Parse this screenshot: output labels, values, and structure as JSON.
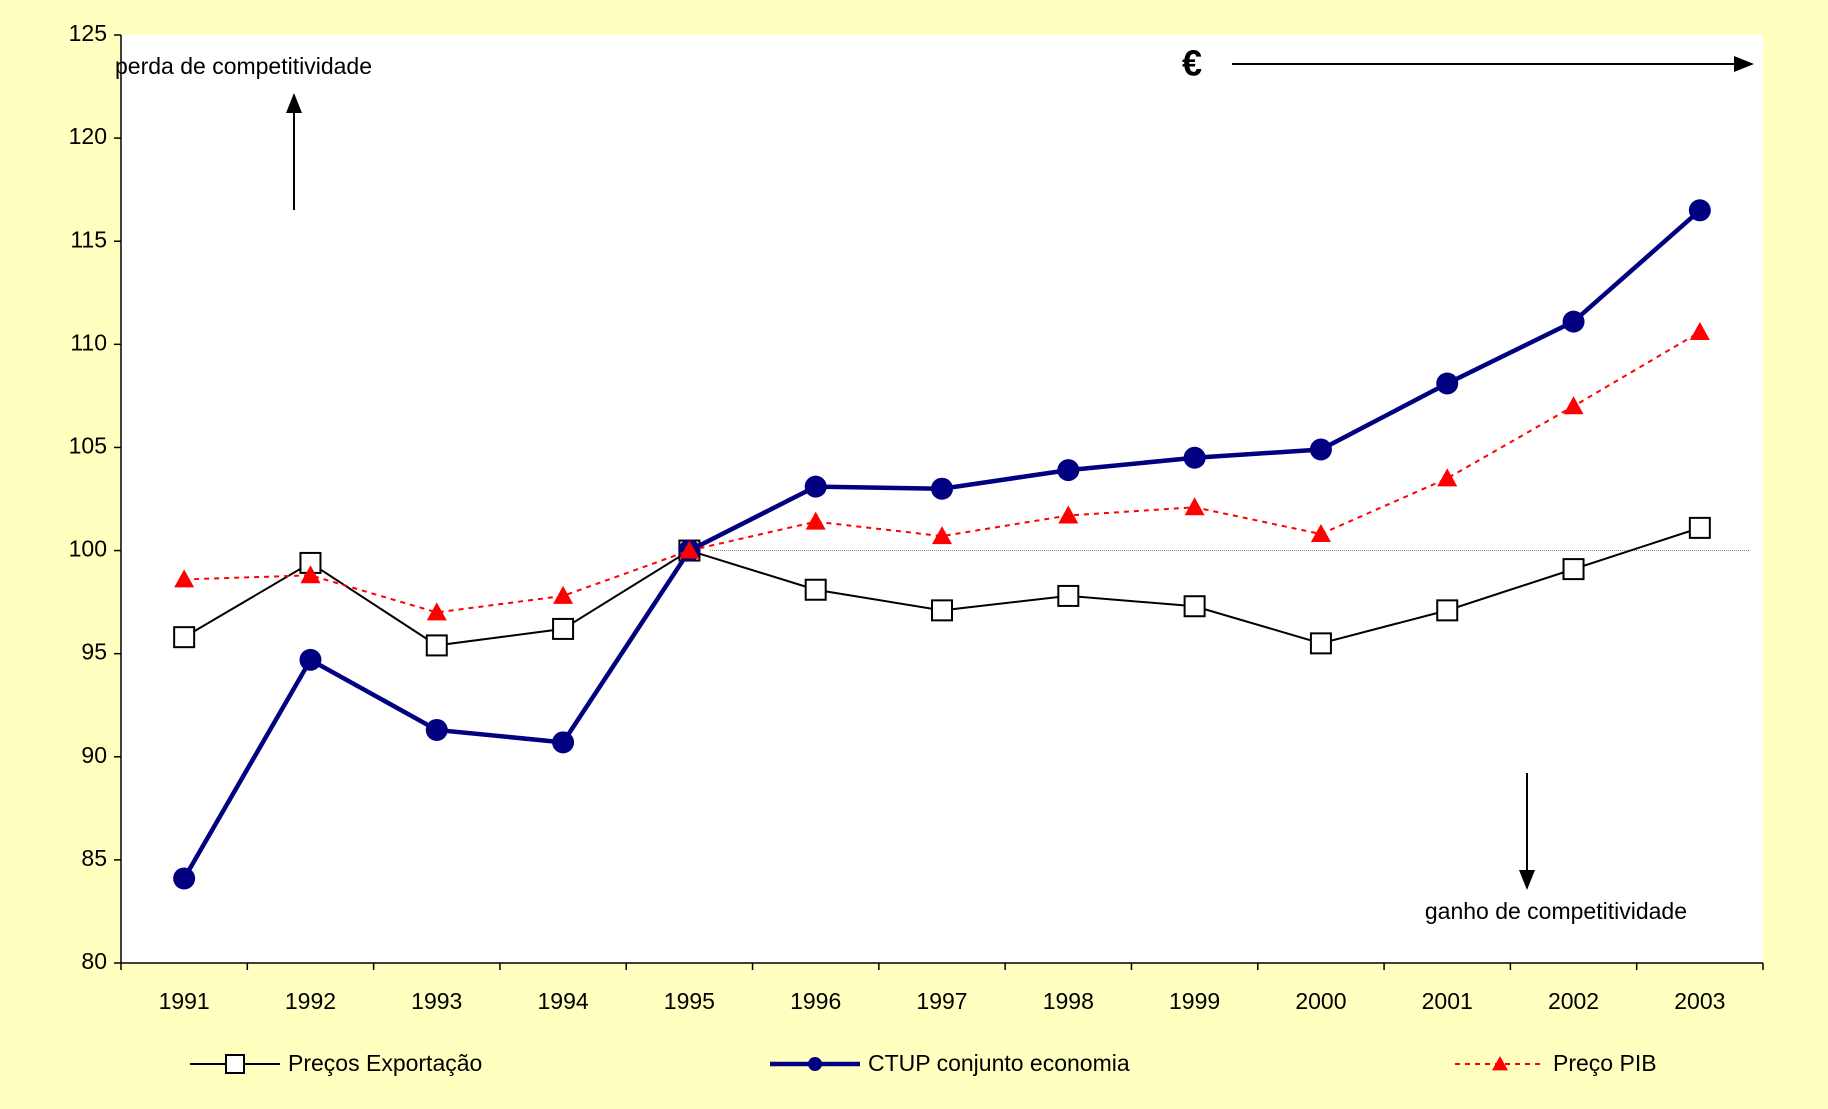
{
  "chart_data": {
    "type": "line",
    "categories": [
      "1991",
      "1992",
      "1993",
      "1994",
      "1995",
      "1996",
      "1997",
      "1998",
      "1999",
      "2000",
      "2001",
      "2002",
      "2003"
    ],
    "series": [
      {
        "name": "Preços Exportação",
        "color": "#000000",
        "values": [
          95.8,
          99.4,
          95.4,
          96.2,
          100,
          98.1,
          97.1,
          97.8,
          97.3,
          95.5,
          97.1,
          99.1,
          101.1
        ]
      },
      {
        "name": "CTUP conjunto economia",
        "color": "#000080",
        "values": [
          84.1,
          94.7,
          91.3,
          90.7,
          100,
          103.1,
          103.0,
          103.9,
          104.5,
          104.9,
          108.1,
          111.1,
          116.5
        ]
      },
      {
        "name": "Preço  PIB",
        "color": "#ff0000",
        "values": [
          98.6,
          98.8,
          97.0,
          97.8,
          100,
          101.4,
          100.7,
          101.7,
          102.1,
          100.8,
          103.5,
          107.0,
          110.6
        ]
      }
    ],
    "ylim": [
      80,
      125
    ],
    "yticks": [
      80,
      85,
      90,
      95,
      100,
      105,
      110,
      115,
      120,
      125
    ],
    "reference_line": 100,
    "annotations": [
      "perda de competitividade",
      "ganho de competitividade",
      "€"
    ]
  }
}
